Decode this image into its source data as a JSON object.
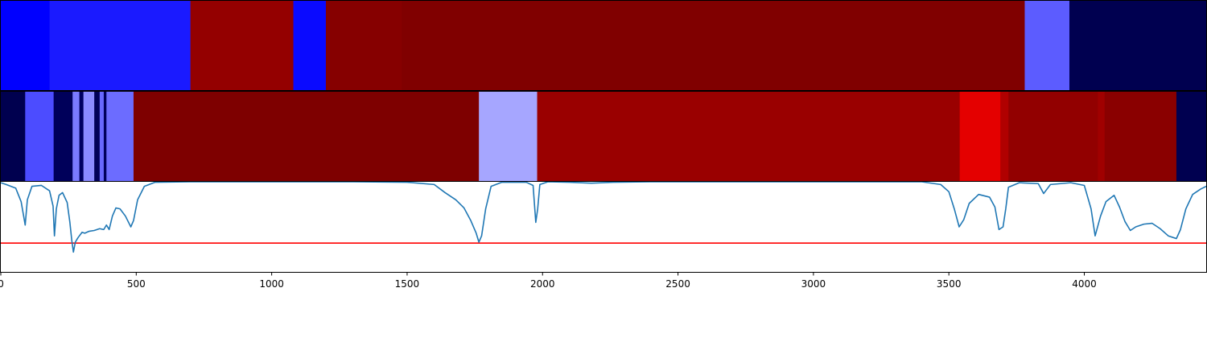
{
  "chart_data": {
    "type": "heatmap",
    "xlim": [
      0,
      4450
    ],
    "x_ticks": [
      0,
      500,
      1000,
      1500,
      2000,
      2500,
      3000,
      3500,
      4000
    ],
    "x_tick_labels": [
      "0",
      "500",
      "1000",
      "1500",
      "2000",
      "2500",
      "3000",
      "3500",
      "4000"
    ],
    "grid": false,
    "legend": "none",
    "colormap": "seismic",
    "bands": [
      {
        "segments": [
          {
            "start": 0,
            "end": 180,
            "color": "#0000ff"
          },
          {
            "start": 180,
            "end": 700,
            "color": "#1a1aff"
          },
          {
            "start": 700,
            "end": 1080,
            "color": "#940000"
          },
          {
            "start": 1080,
            "end": 1200,
            "color": "#0a0aff"
          },
          {
            "start": 1200,
            "end": 1480,
            "color": "#860000"
          },
          {
            "start": 1480,
            "end": 3780,
            "color": "#800000"
          },
          {
            "start": 3780,
            "end": 3945,
            "color": "#5c5cff"
          },
          {
            "start": 3945,
            "end": 4450,
            "color": "#000050"
          }
        ]
      },
      {
        "segments": [
          {
            "start": 0,
            "end": 90,
            "color": "#00004f"
          },
          {
            "start": 90,
            "end": 195,
            "color": "#4c4cff"
          },
          {
            "start": 195,
            "end": 265,
            "color": "#00005a"
          },
          {
            "start": 265,
            "end": 290,
            "color": "#7a7aff"
          },
          {
            "start": 290,
            "end": 305,
            "color": "#000060"
          },
          {
            "start": 305,
            "end": 345,
            "color": "#8a8aff"
          },
          {
            "start": 345,
            "end": 365,
            "color": "#000058"
          },
          {
            "start": 365,
            "end": 380,
            "color": "#6868ff"
          },
          {
            "start": 380,
            "end": 390,
            "color": "#00005c"
          },
          {
            "start": 390,
            "end": 490,
            "color": "#6c6cff"
          },
          {
            "start": 490,
            "end": 1765,
            "color": "#7e0000"
          },
          {
            "start": 1765,
            "end": 1980,
            "color": "#a6a6ff"
          },
          {
            "start": 1980,
            "end": 3540,
            "color": "#9a0000"
          },
          {
            "start": 3540,
            "end": 3690,
            "color": "#e40000"
          },
          {
            "start": 3690,
            "end": 3720,
            "color": "#b00000"
          },
          {
            "start": 3720,
            "end": 4050,
            "color": "#920000"
          },
          {
            "start": 4050,
            "end": 4075,
            "color": "#a00000"
          },
          {
            "start": 4075,
            "end": 4340,
            "color": "#8a0000"
          },
          {
            "start": 4340,
            "end": 4450,
            "color": "#000050"
          }
        ]
      }
    ],
    "line": {
      "color": "#1f77b4",
      "ylim": [
        0,
        1
      ],
      "threshold": 0.32,
      "threshold_color": "#ff0000",
      "points": [
        [
          0,
          0.99
        ],
        [
          20,
          0.97
        ],
        [
          55,
          0.93
        ],
        [
          75,
          0.78
        ],
        [
          90,
          0.52
        ],
        [
          98,
          0.8
        ],
        [
          115,
          0.95
        ],
        [
          150,
          0.96
        ],
        [
          180,
          0.9
        ],
        [
          193,
          0.73
        ],
        [
          198,
          0.4
        ],
        [
          205,
          0.7
        ],
        [
          215,
          0.85
        ],
        [
          228,
          0.88
        ],
        [
          245,
          0.77
        ],
        [
          255,
          0.55
        ],
        [
          262,
          0.35
        ],
        [
          268,
          0.22
        ],
        [
          275,
          0.33
        ],
        [
          285,
          0.38
        ],
        [
          300,
          0.44
        ],
        [
          310,
          0.43
        ],
        [
          325,
          0.45
        ],
        [
          345,
          0.46
        ],
        [
          365,
          0.48
        ],
        [
          380,
          0.47
        ],
        [
          390,
          0.52
        ],
        [
          400,
          0.47
        ],
        [
          412,
          0.62
        ],
        [
          425,
          0.71
        ],
        [
          440,
          0.7
        ],
        [
          460,
          0.62
        ],
        [
          480,
          0.5
        ],
        [
          490,
          0.57
        ],
        [
          505,
          0.8
        ],
        [
          530,
          0.95
        ],
        [
          570,
          0.995
        ],
        [
          700,
          1.0
        ],
        [
          900,
          1.0
        ],
        [
          1100,
          1.0
        ],
        [
          1300,
          1.0
        ],
        [
          1500,
          0.995
        ],
        [
          1600,
          0.97
        ],
        [
          1640,
          0.88
        ],
        [
          1680,
          0.8
        ],
        [
          1710,
          0.71
        ],
        [
          1735,
          0.57
        ],
        [
          1755,
          0.43
        ],
        [
          1765,
          0.33
        ],
        [
          1775,
          0.4
        ],
        [
          1790,
          0.7
        ],
        [
          1810,
          0.95
        ],
        [
          1850,
          0.995
        ],
        [
          1940,
          0.995
        ],
        [
          1965,
          0.96
        ],
        [
          1975,
          0.55
        ],
        [
          1982,
          0.7
        ],
        [
          1990,
          0.97
        ],
        [
          2020,
          1.0
        ],
        [
          2100,
          0.995
        ],
        [
          2180,
          0.985
        ],
        [
          2260,
          0.995
        ],
        [
          2400,
          1.0
        ],
        [
          2800,
          1.0
        ],
        [
          3200,
          1.0
        ],
        [
          3400,
          1.0
        ],
        [
          3470,
          0.97
        ],
        [
          3500,
          0.89
        ],
        [
          3520,
          0.7
        ],
        [
          3538,
          0.5
        ],
        [
          3555,
          0.58
        ],
        [
          3575,
          0.76
        ],
        [
          3610,
          0.86
        ],
        [
          3650,
          0.83
        ],
        [
          3670,
          0.72
        ],
        [
          3685,
          0.47
        ],
        [
          3700,
          0.5
        ],
        [
          3710,
          0.7
        ],
        [
          3720,
          0.94
        ],
        [
          3760,
          0.99
        ],
        [
          3830,
          0.98
        ],
        [
          3850,
          0.87
        ],
        [
          3875,
          0.97
        ],
        [
          3950,
          0.99
        ],
        [
          4000,
          0.96
        ],
        [
          4025,
          0.7
        ],
        [
          4040,
          0.4
        ],
        [
          4060,
          0.62
        ],
        [
          4080,
          0.78
        ],
        [
          4110,
          0.85
        ],
        [
          4130,
          0.72
        ],
        [
          4150,
          0.56
        ],
        [
          4170,
          0.46
        ],
        [
          4190,
          0.5
        ],
        [
          4220,
          0.53
        ],
        [
          4250,
          0.54
        ],
        [
          4280,
          0.48
        ],
        [
          4310,
          0.4
        ],
        [
          4340,
          0.37
        ],
        [
          4355,
          0.47
        ],
        [
          4375,
          0.7
        ],
        [
          4400,
          0.86
        ],
        [
          4430,
          0.92
        ],
        [
          4450,
          0.95
        ]
      ]
    }
  }
}
